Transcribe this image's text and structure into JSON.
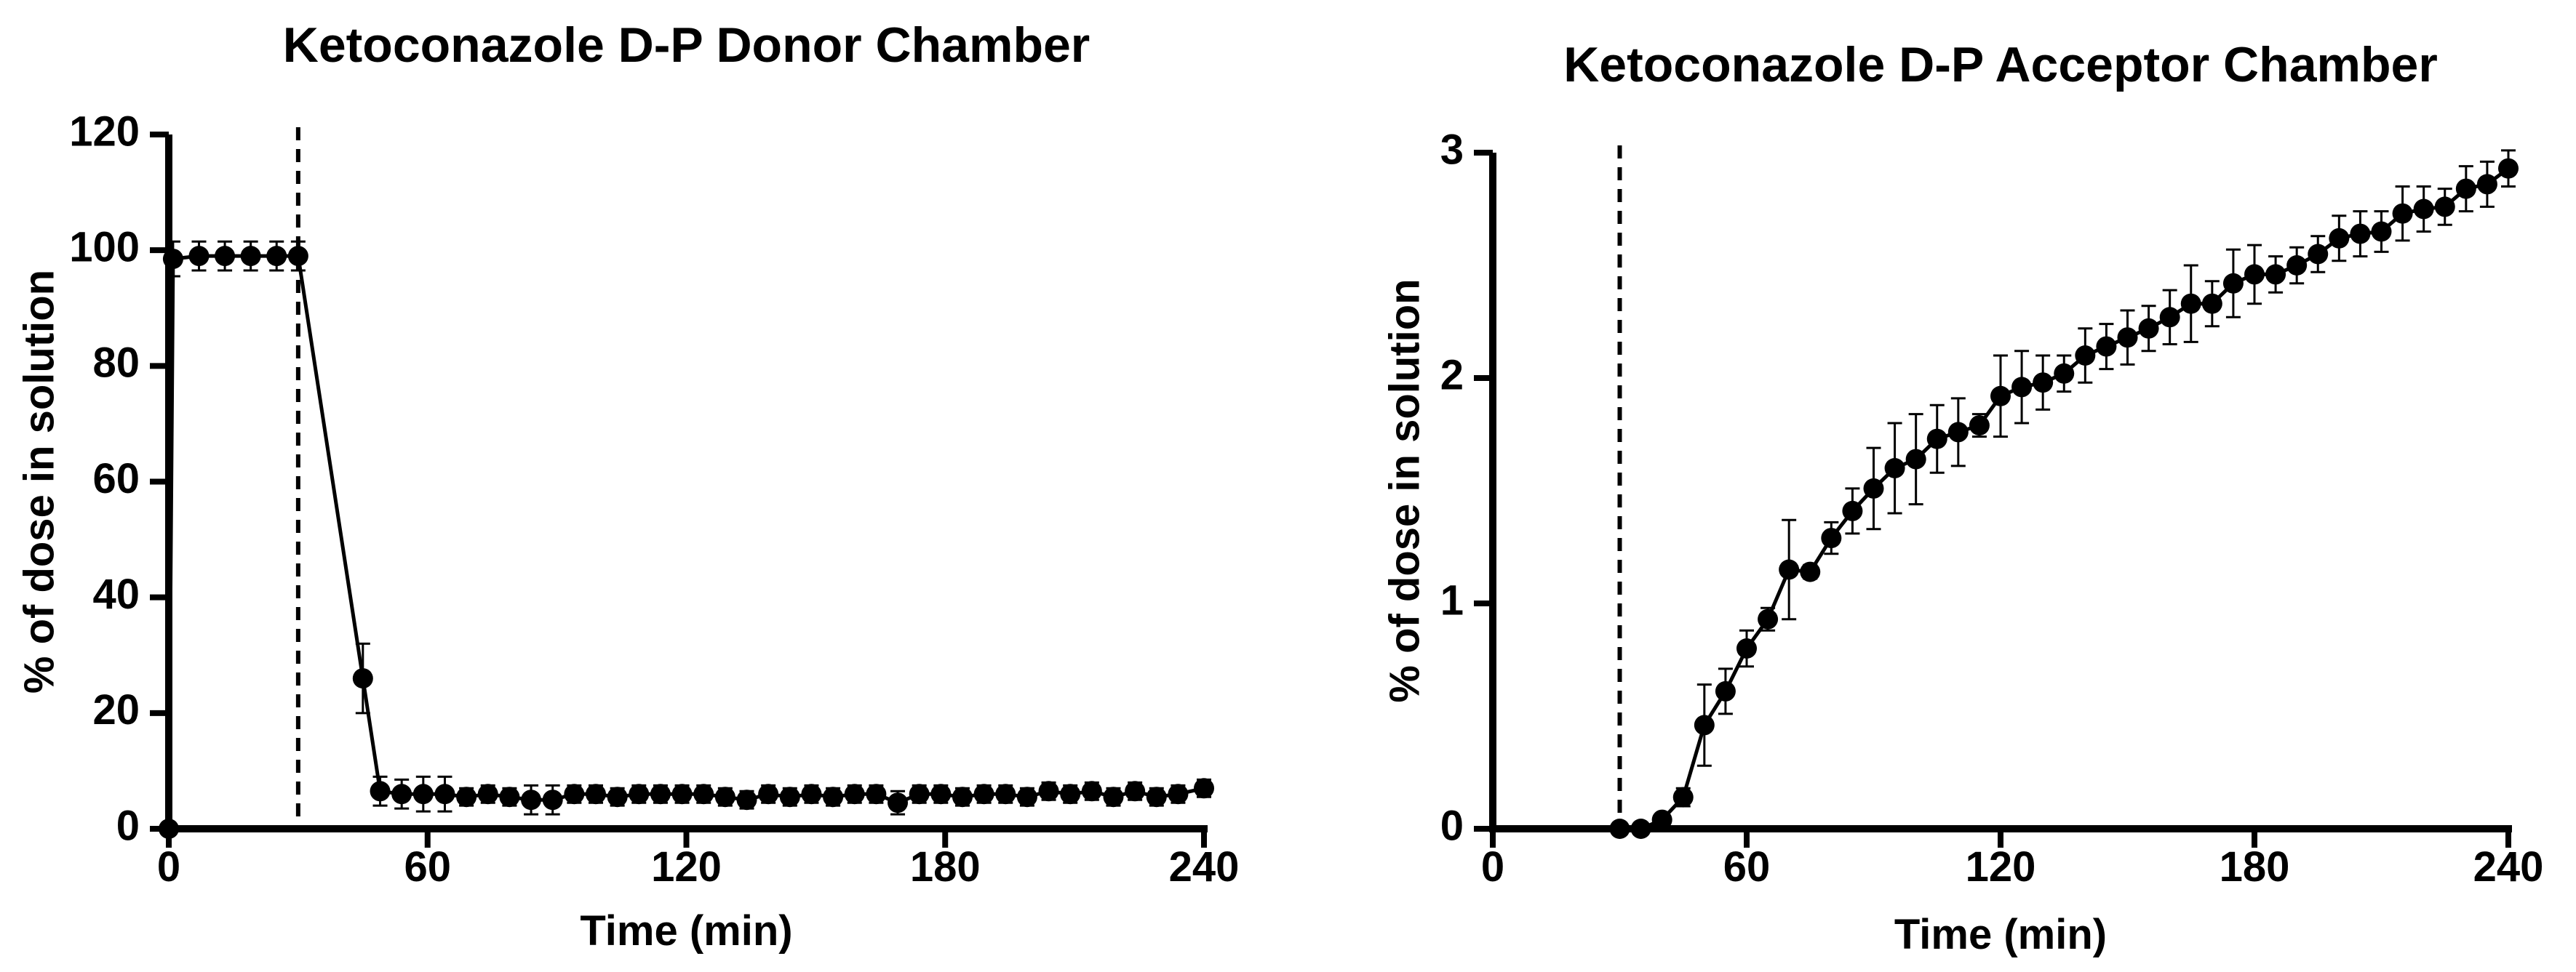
{
  "chart_data": [
    {
      "type": "line",
      "title": "Ketoconazole D-P Donor Chamber",
      "xlabel": "Time (min)",
      "ylabel": "% of dose in solution",
      "xlim": [
        0,
        240
      ],
      "ylim": [
        0,
        120
      ],
      "x_ticks": [
        0,
        60,
        120,
        180,
        240
      ],
      "y_ticks": [
        0,
        20,
        40,
        60,
        80,
        100,
        120
      ],
      "x_tick_labels": [
        "0",
        "60",
        "120",
        "180",
        "240"
      ],
      "y_tick_labels": [
        "0",
        "20",
        "40",
        "60",
        "80",
        "100",
        "120"
      ],
      "vline_x": 30,
      "series": [
        {
          "name": "Donor",
          "x": [
            0,
            1,
            7,
            13,
            19,
            25,
            30,
            45,
            49,
            54,
            59,
            64,
            69,
            74,
            79,
            84,
            89,
            94,
            99,
            104,
            109,
            114,
            119,
            124,
            129,
            134,
            139,
            144,
            149,
            154,
            159,
            164,
            169,
            174,
            179,
            184,
            189,
            194,
            199,
            204,
            209,
            214,
            219,
            224,
            229,
            234,
            240
          ],
          "y": [
            0,
            98.5,
            99,
            99,
            99,
            99,
            99,
            26,
            6.5,
            6,
            6,
            6,
            5.5,
            6,
            5.5,
            5,
            5,
            6,
            6,
            5.5,
            6,
            6,
            6,
            6,
            5.5,
            5,
            6,
            5.5,
            6,
            5.5,
            6,
            6,
            4.5,
            6,
            6,
            5.5,
            6,
            6,
            5.5,
            6.5,
            6,
            6.5,
            5.5,
            6.5,
            5.5,
            6,
            7
          ],
          "err": [
            0,
            3,
            2.5,
            2.5,
            2.5,
            2.5,
            2.5,
            6,
            2.5,
            2.5,
            3,
            3,
            1.5,
            1.5,
            1.5,
            2.5,
            2.5,
            1.5,
            1.5,
            1.5,
            1.5,
            1.5,
            1.5,
            1.5,
            1.5,
            1.5,
            1.5,
            1.5,
            1.5,
            1.5,
            1.5,
            1.5,
            2,
            1.5,
            1.5,
            1.5,
            1.5,
            1.5,
            1.5,
            1.5,
            1.5,
            1.5,
            1.5,
            1.5,
            1.5,
            1.5,
            1.5
          ]
        }
      ]
    },
    {
      "type": "line",
      "title": "Ketoconazole D-P Acceptor Chamber",
      "xlabel": "Time (min)",
      "ylabel": "% of dose in solution",
      "xlim": [
        0,
        240
      ],
      "ylim": [
        0,
        3
      ],
      "x_ticks": [
        0,
        60,
        120,
        180,
        240
      ],
      "y_ticks": [
        0,
        1,
        2,
        3
      ],
      "x_tick_labels": [
        "0",
        "60",
        "120",
        "180",
        "240"
      ],
      "y_tick_labels": [
        "0",
        "1",
        "2",
        "3"
      ],
      "vline_x": 30,
      "series": [
        {
          "name": "Acceptor",
          "x": [
            30,
            35,
            40,
            45,
            50,
            55,
            60,
            65,
            70,
            75,
            80,
            85,
            90,
            95,
            100,
            105,
            110,
            115,
            120,
            125,
            130,
            135,
            140,
            145,
            150,
            155,
            160,
            165,
            170,
            175,
            180,
            185,
            190,
            195,
            200,
            205,
            210,
            215,
            220,
            225,
            230,
            235,
            240
          ],
          "y": [
            0,
            0,
            0.04,
            0.14,
            0.46,
            0.61,
            0.8,
            0.93,
            1.15,
            1.14,
            1.29,
            1.41,
            1.51,
            1.6,
            1.64,
            1.73,
            1.76,
            1.79,
            1.92,
            1.96,
            1.98,
            2.02,
            2.1,
            2.14,
            2.18,
            2.22,
            2.27,
            2.33,
            2.33,
            2.42,
            2.46,
            2.46,
            2.5,
            2.55,
            2.62,
            2.64,
            2.65,
            2.73,
            2.75,
            2.76,
            2.84,
            2.86,
            2.93
          ],
          "err": [
            0,
            0,
            0.02,
            0.04,
            0.18,
            0.1,
            0.08,
            0.05,
            0.22,
            0.03,
            0.07,
            0.1,
            0.18,
            0.2,
            0.2,
            0.15,
            0.15,
            0.05,
            0.18,
            0.16,
            0.12,
            0.08,
            0.12,
            0.1,
            0.12,
            0.1,
            0.12,
            0.17,
            0.1,
            0.15,
            0.13,
            0.08,
            0.08,
            0.08,
            0.1,
            0.1,
            0.09,
            0.12,
            0.1,
            0.08,
            0.1,
            0.1,
            0.08
          ]
        }
      ]
    }
  ]
}
